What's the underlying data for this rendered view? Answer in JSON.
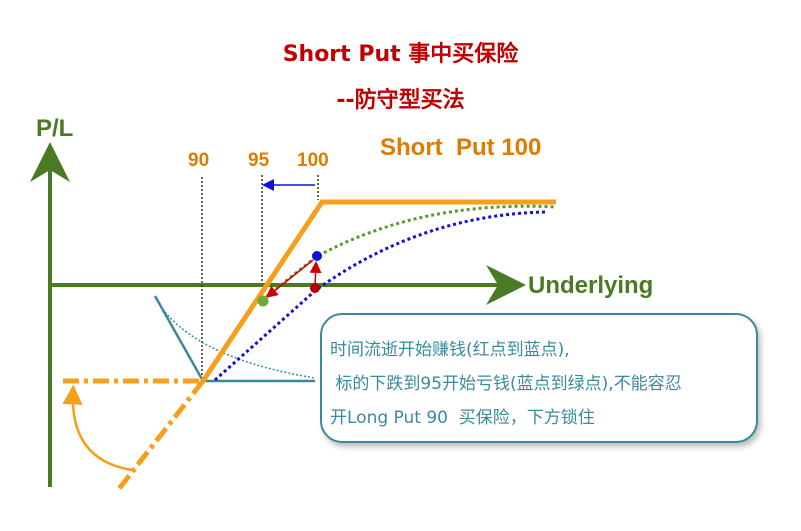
{
  "title": {
    "line1": "Short Put 事中买保险",
    "line2": "--防守型买法",
    "color": "#c00000"
  },
  "axes": {
    "y_label": "P/L",
    "x_label": "Underlying",
    "color": "#4a7a23"
  },
  "strategy_label": "Short  Put 100",
  "strike_labels": [
    "90",
    "95",
    "100"
  ],
  "callout": {
    "lines": [
      "时间流逝开始赚钱(红点到蓝点),",
      " 标的下跌到95开始亏钱(蓝点到绿点),不能容忍",
      "开Long Put 90  买保险，下方锁住"
    ]
  },
  "colors": {
    "orange": "#f5a01a",
    "label_orange": "#e07b00",
    "teal": "#3b8a9a",
    "green_dotted": "#5a9a30",
    "blue_dotted": "#1010e0",
    "red": "#cc0000"
  }
}
